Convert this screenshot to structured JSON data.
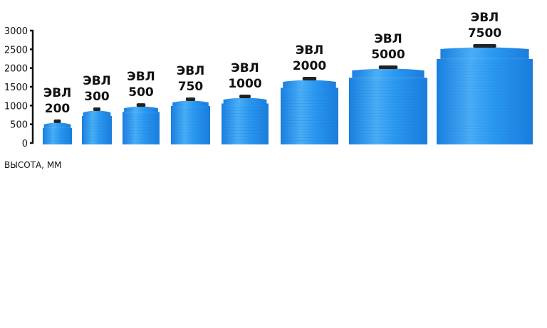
{
  "chart_data": {
    "type": "bar",
    "title": "",
    "xlabel": "",
    "ylabel": "ВЫСОТА, ММ",
    "ylim": [
      0,
      3000
    ],
    "yticks": [
      "0",
      "500",
      "1000",
      "1500",
      "2000",
      "2500",
      "3000"
    ],
    "categories": [
      [
        "ЭВЛ",
        "200"
      ],
      [
        "ЭВЛ",
        "300"
      ],
      [
        "ЭВЛ",
        "500"
      ],
      [
        "ЭВЛ",
        "750"
      ],
      [
        "ЭВЛ",
        "1000"
      ],
      [
        "ЭВЛ",
        "2000"
      ],
      [
        "ЭВЛ",
        "5000"
      ],
      [
        "ЭВЛ",
        "7500"
      ]
    ],
    "values": [
      630,
      950,
      1060,
      1215,
      1290,
      1765,
      2070,
      2640
    ],
    "grid": false,
    "mark": "tank-illustration",
    "colors": {
      "tank": "#1f8ff0",
      "tank_light": "#5ab6f7",
      "cap": "#222222",
      "axis": "#111111"
    }
  }
}
